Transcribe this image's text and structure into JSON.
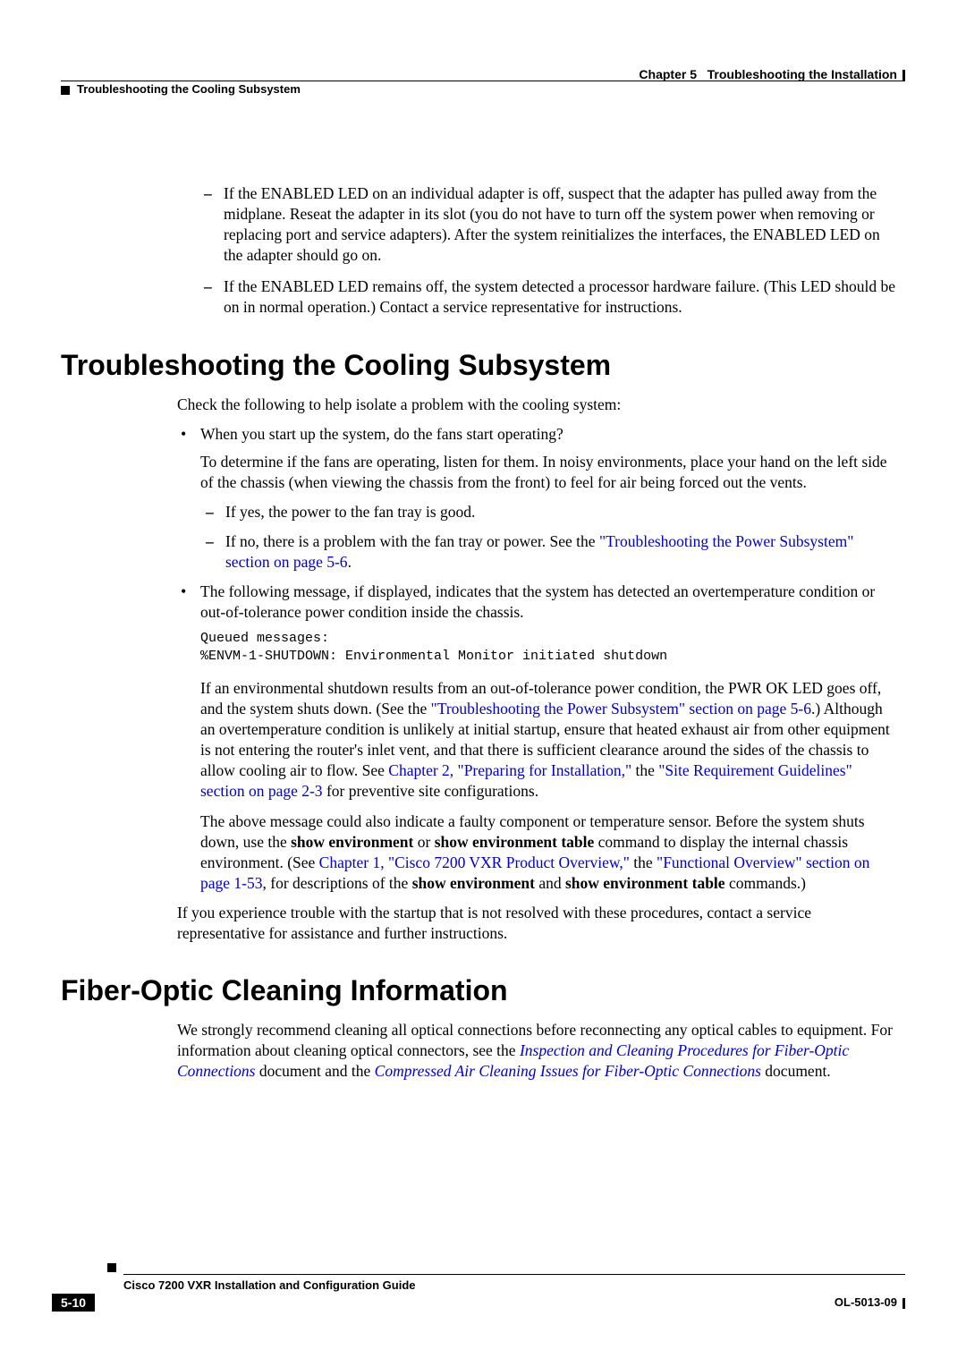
{
  "header": {
    "chapter": "Chapter 5",
    "chapterTitle": "Troubleshooting the Installation",
    "sectionTitle": "Troubleshooting the Cooling Subsystem"
  },
  "topDashItems": {
    "item1": "If the ENABLED LED on an individual adapter is off, suspect that the adapter has pulled away from the midplane. Reseat the adapter in its slot (you do not have to turn off the system power when removing or replacing port and service adapters). After the system reinitializes the interfaces, the ENABLED LED on the adapter should go on.",
    "item2": "If the ENABLED LED remains off, the system detected a processor hardware failure. (This LED should be on in normal operation.) Contact a service representative for instructions."
  },
  "sections": {
    "cooling": "Troubleshooting the Cooling Subsystem",
    "fiber": "Fiber-Optic Cleaning Information"
  },
  "cooling": {
    "intro": "Check the following to help isolate a problem with the cooling system:",
    "bullet1": "When you start up the system, do the fans start operating?",
    "bullet1_body": "To determine if the fans are operating, listen for them. In noisy environments, place your hand on the left side of the chassis (when viewing the chassis from the front) to feel for air being forced out the vents.",
    "dash1": "If yes, the power to the fan tray is good.",
    "dash2_pre": "If no, there is a problem with the fan tray or power. See the ",
    "dash2_link": "\"Troubleshooting the Power Subsystem\" section on page 5-6",
    "dash2_post": ".",
    "bullet2": "The following message, if displayed, indicates that the system has detected an overtemperature condition or out-of-tolerance power condition inside the chassis.",
    "code": "Queued messages:\n%ENVM-1-SHUTDOWN: Environmental Monitor initiated shutdown",
    "para1_a": "If an environmental shutdown results from an out-of-tolerance power condition, the PWR OK LED goes off, and the system shuts down. (See the ",
    "para1_link1": "\"Troubleshooting the Power Subsystem\" section on page 5-6",
    "para1_b": ".) Although an overtemperature condition is unlikely at initial startup, ensure that heated exhaust air from other equipment is not entering the router's inlet vent, and that there is sufficient clearance around the sides of the chassis to allow cooling air to flow. See ",
    "para1_link2": "Chapter 2, \"Preparing for Installation,\"",
    "para1_c": " the ",
    "para1_link3": "\"Site Requirement Guidelines\" section on page 2-3",
    "para1_d": " for preventive site configurations.",
    "para2_a": "The above message could also indicate a faulty component or temperature sensor. Before the system shuts down, use the ",
    "para2_bold1": "show environment",
    "para2_b": " or ",
    "para2_bold2": "show environment table",
    "para2_c": " command to display the internal chassis environment. (See ",
    "para2_link1": "Chapter 1, \"Cisco 7200 VXR Product Overview,\"",
    "para2_d": " the ",
    "para2_link2": "\"Functional Overview\" section on page 1-53",
    "para2_e": ", for descriptions of the ",
    "para2_bold3": "show environment",
    "para2_f": " and ",
    "para2_bold4": "show environment table",
    "para2_g": " commands.)",
    "closing": "If you experience trouble with the startup that is not resolved with these procedures, contact a service representative for assistance and further instructions."
  },
  "fiber": {
    "p_a": "We strongly recommend cleaning all optical connections before reconnecting any optical cables to equipment. For information about cleaning optical connectors, see the ",
    "link1": "Inspection and Cleaning Procedures for Fiber-Optic Connections",
    "p_b": " document and the ",
    "link2": "Compressed Air Cleaning Issues for Fiber-Optic Connections",
    "p_c": " document."
  },
  "footer": {
    "guideTitle": "Cisco 7200 VXR Installation and Configuration Guide",
    "pageNum": "5-10",
    "docId": "OL-5013-09"
  },
  "colors": {
    "link": "#0000cc",
    "text": "#000000",
    "bg": "#ffffff"
  }
}
